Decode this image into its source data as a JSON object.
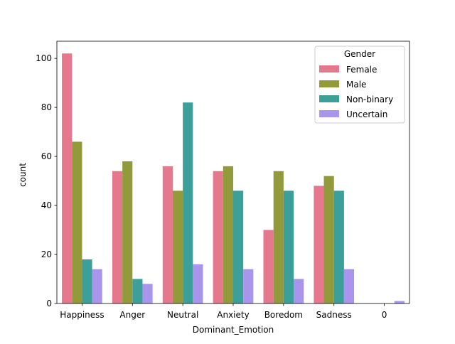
{
  "chart_data": {
    "type": "bar",
    "title": "",
    "xlabel": "Dominant_Emotion",
    "ylabel": "count",
    "categories": [
      "Happiness",
      "Anger",
      "Neutral",
      "Anxiety",
      "Boredom",
      "Sadness",
      "0"
    ],
    "ylim": [
      0,
      107
    ],
    "yticks": [
      0,
      20,
      40,
      60,
      80,
      100
    ],
    "grid": false,
    "legend": {
      "title": "Gender",
      "placement": "top-right"
    },
    "series": [
      {
        "name": "Female",
        "color": "#e5788c",
        "values": [
          102,
          54,
          56,
          54,
          30,
          48,
          0
        ]
      },
      {
        "name": "Male",
        "color": "#929a3c",
        "values": [
          66,
          58,
          46,
          56,
          54,
          52,
          0
        ]
      },
      {
        "name": "Non-binary",
        "color": "#3d9f99",
        "values": [
          18,
          10,
          82,
          46,
          46,
          46,
          0
        ]
      },
      {
        "name": "Uncertain",
        "color": "#a995ec",
        "values": [
          14,
          8,
          16,
          14,
          10,
          14,
          1
        ]
      }
    ]
  }
}
